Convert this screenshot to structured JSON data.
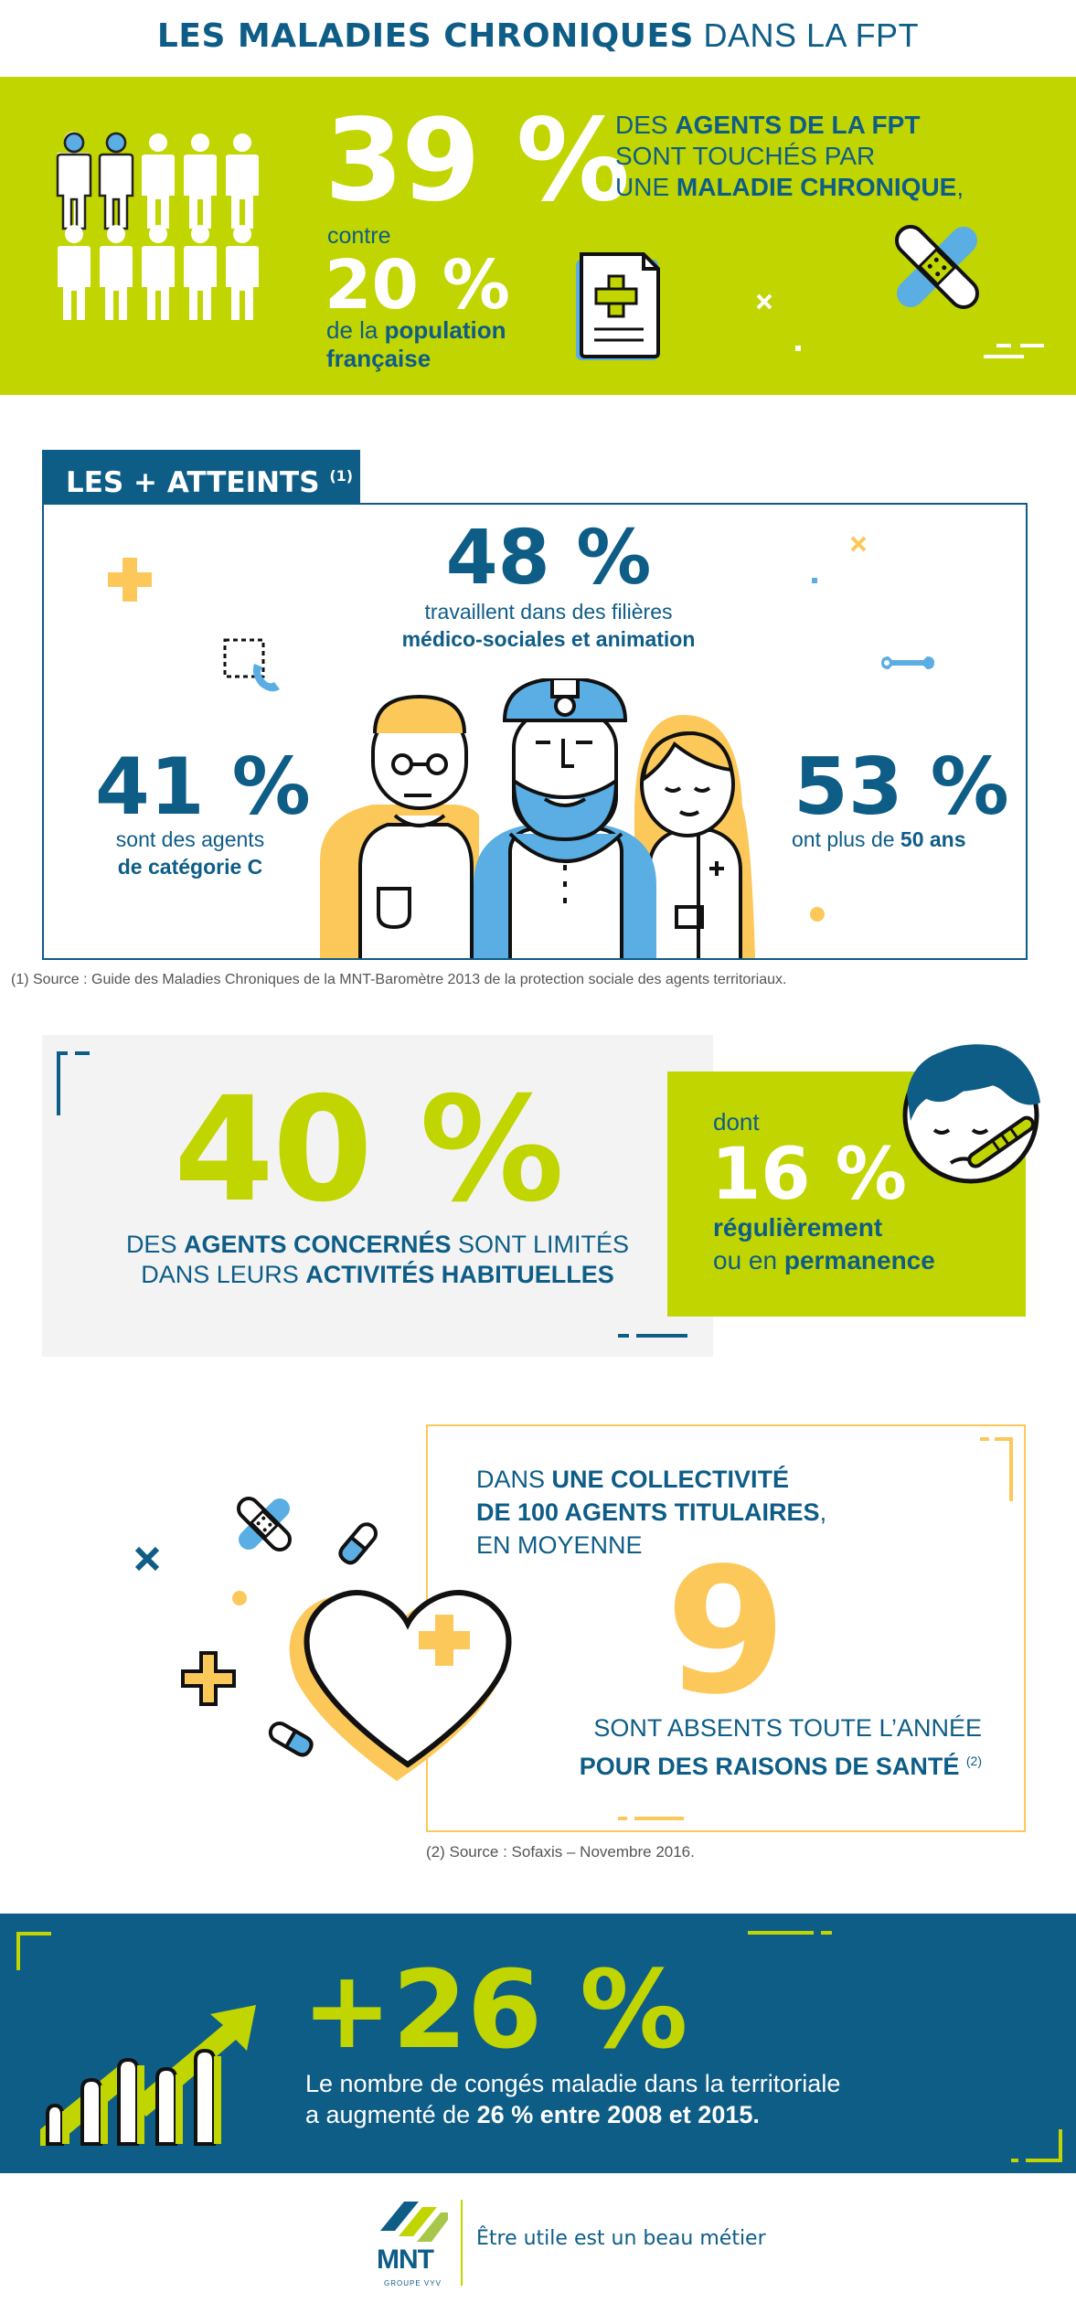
{
  "title": {
    "bold": "LES MALADIES CHRONIQUES",
    "light": "DANS LA FPT"
  },
  "sec1": {
    "pct": "39 %",
    "line1_a": "DES ",
    "line1_b": "AGENTS DE LA FPT",
    "line2": "SONT TOUCHÉS PAR",
    "line3_a": "UNE ",
    "line3_b": "MALADIE CHRONIQUE",
    "line3_c": ",",
    "contre": "contre",
    "pct2": "20 %",
    "pop_a": "de la ",
    "pop_b": "population",
    "pop_c": "française"
  },
  "sec2": {
    "tab": "LES + ATTEINTS",
    "tab_note": "(1)",
    "p48": "48 %",
    "p48_l1": "travaillent dans des filières",
    "p48_l2": "médico-sociales et animation",
    "p41": "41 %",
    "p41_l1": "sont des agents",
    "p41_l2": "de catégorie C",
    "p53": "53 %",
    "p53_a": "ont plus de ",
    "p53_b": "50 ans",
    "source": "(1) Source : Guide des Maladies Chroniques de la MNT-Baromètre 2013 de la protection sociale des agents territoriaux."
  },
  "sec3": {
    "p40": "40 %",
    "l1_a": "DES ",
    "l1_b": "AGENTS CONCERNÉS",
    "l1_c": " SONT LIMITÉS",
    "l2_a": "DANS LEURS ",
    "l2_b": "ACTIVITÉS HABITUELLES",
    "dont": "dont",
    "p16": "16 %",
    "reg": "régulièrement",
    "perm_a": "ou en ",
    "perm_b": "permanence"
  },
  "sec4": {
    "l1_a": "DANS ",
    "l1_b": "UNE COLLECTIVITÉ",
    "l2_a": "DE 100 AGENTS TITULAIRES",
    "l2_b": ",",
    "l3": "EN MOYENNE",
    "num": "9",
    "l4": "SONT ABSENTS TOUTE L’ANNÉE",
    "l5": "POUR DES RAISONS DE SANTÉ",
    "note": "(2)",
    "source": "(2) Source : Sofaxis – Novembre 2016."
  },
  "sec5": {
    "pct": "+26 %",
    "l1": "Le nombre de congés maladie dans la territoriale",
    "l2_a": "a augmenté de ",
    "l2_b": "26 % entre 2008 et 2015."
  },
  "footer": {
    "logo": "MNT",
    "groupe": "GROUPE VYV",
    "slogan": "Être utile est un beau métier"
  },
  "colors": {
    "navy": "#0e5d87",
    "lime": "#c1d500",
    "yellow": "#fcc85a",
    "lightblue": "#5aaee3"
  },
  "icons": [
    "people-icon",
    "document-plus-icon",
    "bandage-icon",
    "plus-icon",
    "cross-icon",
    "wrench-icon",
    "phone-icon",
    "doctor-icon",
    "miner-icon",
    "nurse-icon",
    "sick-face-icon",
    "pill-icon",
    "heart-icon",
    "bar-chart-icon"
  ]
}
